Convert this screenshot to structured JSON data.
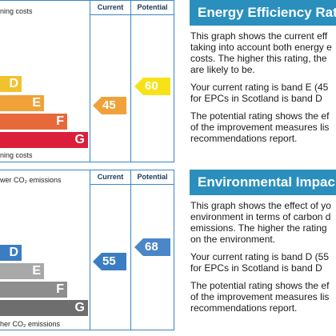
{
  "energy": {
    "top_label": "ning costs",
    "bottom_label": "ning costs",
    "col_current": "Current",
    "col_potential": "Potential",
    "bands": [
      {
        "letter": "D",
        "color": "#f2c12e"
      },
      {
        "letter": "E",
        "color": "#f0a13a"
      },
      {
        "letter": "F",
        "color": "#e7683b"
      },
      {
        "letter": "G",
        "color": "#db1f3b"
      }
    ],
    "current": {
      "value": "45",
      "color": "#f0a13a",
      "text_color": "#ffffff"
    },
    "potential": {
      "value": "60",
      "color": "#f7e21a",
      "text_color": "#ffffff"
    }
  },
  "environmental": {
    "top_label": "wer CO₂ emissions",
    "bottom_label": "her CO₂ emissions",
    "col_current": "Current",
    "col_potential": "Potential",
    "bands": [
      {
        "letter": "D",
        "color": "#3b7dc2"
      },
      {
        "letter": "E",
        "color": "#a8a8a8"
      },
      {
        "letter": "F",
        "color": "#8e8e8e"
      },
      {
        "letter": "G",
        "color": "#6e6e6e"
      }
    ],
    "current": {
      "value": "55",
      "color": "#3b7dc2",
      "text_color": "#ffffff"
    },
    "potential": {
      "value": "68",
      "color": "#4a86c8",
      "text_color": "#ffffff"
    }
  },
  "energy_text": {
    "title": "Energy Efficiency Rat",
    "p1": [
      "This graph shows the current eff",
      "taking into account both energy e",
      "costs. The higher this rating, the",
      "are likely to be."
    ],
    "p2": [
      "Your current rating is band E (45",
      "for EPCs in Scotland is band D "
    ],
    "p3": [
      "The potential rating shows the ef",
      "of the improvement measures lis",
      "recommendations report."
    ]
  },
  "environmental_text": {
    "title": "Environmental Impac",
    "p1": [
      "This graph shows the effect of yo",
      "environment in terms of carbon d",
      "emissions. The higher the rating",
      "on the environment."
    ],
    "p2": [
      "Your current rating is band D (55",
      "for EPCs in Scotland is band D "
    ],
    "p3": [
      "The potential rating shows the ef",
      "of the improvement measures lis",
      "recommendations report."
    ]
  }
}
